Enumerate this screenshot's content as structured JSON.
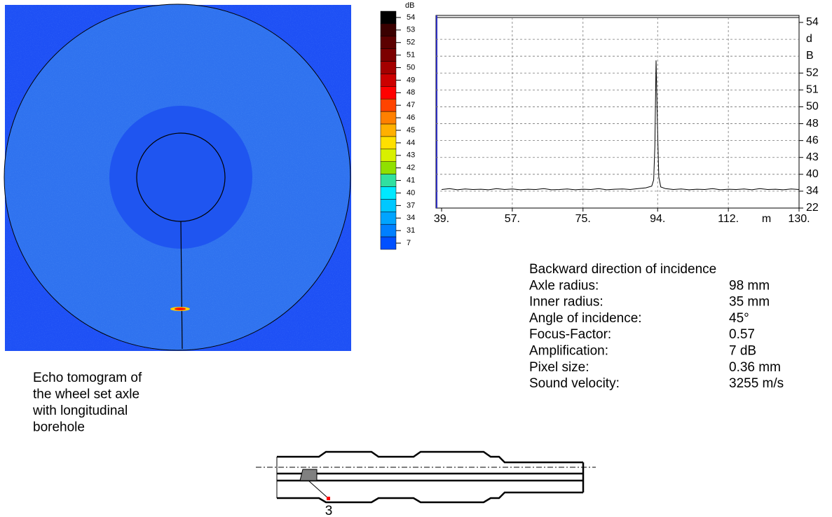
{
  "colorbar": {
    "unit": "dB",
    "levels": [
      54,
      53,
      52,
      51,
      50,
      49,
      48,
      47,
      46,
      45,
      44,
      43,
      42,
      41,
      40,
      37,
      34,
      31,
      7
    ],
    "colors": [
      "#000000",
      "#3a0000",
      "#5c0000",
      "#7c0000",
      "#a40000",
      "#cc0000",
      "#ff0000",
      "#ff4400",
      "#ff8000",
      "#ffb000",
      "#ffe000",
      "#d8f000",
      "#90e000",
      "#30e0a0",
      "#00e8ff",
      "#00c8ff",
      "#00a4ff",
      "#0080ff",
      "#0050ff"
    ]
  },
  "chart_data": {
    "type": "line",
    "color": "#000000",
    "xlabel": "m",
    "ylabel": "dB",
    "x": [
      39,
      41,
      43,
      45,
      47,
      49,
      51,
      53,
      55,
      57,
      59,
      61,
      63,
      65,
      67,
      69,
      71,
      73,
      75,
      77,
      79,
      81,
      83,
      85,
      87,
      89,
      91,
      92.5,
      93,
      93.3,
      93.6,
      94,
      94.3,
      94.8,
      96,
      98,
      100,
      102,
      104,
      106,
      108,
      110,
      112,
      114,
      116,
      118,
      120,
      122,
      124,
      126,
      128,
      130
    ],
    "values": [
      34.6,
      34.9,
      34.5,
      34.8,
      34.6,
      34.7,
      34.5,
      34.9,
      34.6,
      34.8,
      34.5,
      34.7,
      34.6,
      34.9,
      34.5,
      34.6,
      34.8,
      34.5,
      34.7,
      34.6,
      34.9,
      34.5,
      34.7,
      34.8,
      34.6,
      34.9,
      35.2,
      35.8,
      38,
      45,
      52.5,
      47,
      39,
      35.5,
      34.9,
      34.6,
      34.8,
      34.5,
      34.7,
      34.6,
      34.9,
      34.5,
      34.7,
      34.6,
      34.8,
      34.5,
      34.9,
      34.6,
      34.7,
      34.5,
      34.8,
      34.6
    ],
    "xlim": [
      39,
      130
    ],
    "xticks": [
      {
        "value": 39,
        "label": "39."
      },
      {
        "value": 57,
        "label": "57."
      },
      {
        "value": 75,
        "label": "75."
      },
      {
        "value": 94,
        "label": "94."
      },
      {
        "value": 112,
        "label": "112."
      },
      {
        "value": 130,
        "label": "130."
      }
    ],
    "ylim": [
      22,
      54
    ],
    "yticks": [
      54,
      52,
      51,
      50,
      48,
      46,
      43,
      40,
      34,
      22
    ],
    "grid": true
  },
  "parameters": {
    "title": "Backward direction of incidence",
    "rows": [
      [
        "Axle radius:",
        "98 mm"
      ],
      [
        "Inner radius:",
        "35 mm"
      ],
      [
        "Angle of incidence:",
        "45°"
      ],
      [
        "Focus-Factor:",
        "0.57"
      ],
      [
        "Amplification:",
        "7 dB"
      ],
      [
        "Pixel size:",
        "0.36 mm"
      ],
      [
        "Sound velocity:",
        "3255 m/s"
      ]
    ]
  },
  "caption": [
    "Echo tomogram of",
    "the wheel set axle",
    "with longitudinal",
    "borehole"
  ],
  "diagram": {
    "label": "3"
  }
}
